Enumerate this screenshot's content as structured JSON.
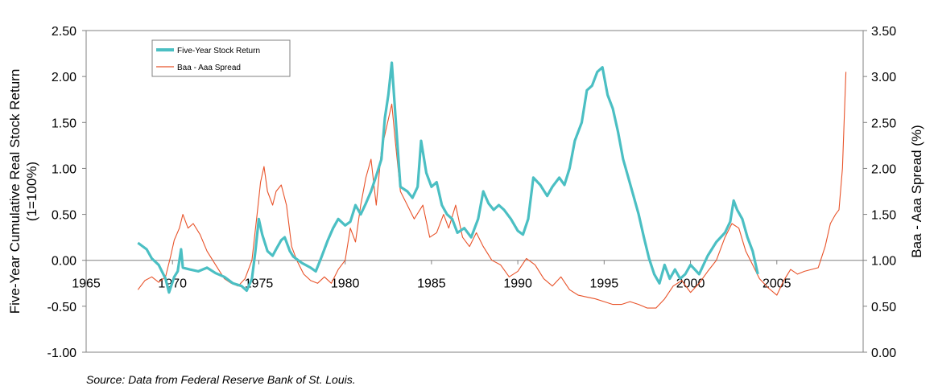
{
  "chart_data": {
    "type": "line",
    "xlim": [
      1965,
      2010
    ],
    "x_ticks": [
      1965,
      1970,
      1975,
      1980,
      1985,
      1990,
      1995,
      2000,
      2005
    ],
    "y_left": {
      "label": "Five-Year Cumulative Real Stock Return",
      "label_sub": "(1=100%)",
      "range": [
        -1.0,
        2.5
      ],
      "ticks": [
        "2.50",
        "2.00",
        "1.50",
        "1.00",
        "0.50",
        "0.00",
        "-0.50",
        "-1.00"
      ]
    },
    "y_right": {
      "label": "Baa - Aaa Spread (%)",
      "range": [
        0.0,
        3.5
      ],
      "ticks": [
        "3.50",
        "3.00",
        "2.50",
        "2.00",
        "1.50",
        "1.00",
        "0.50",
        "0.00"
      ]
    },
    "legend": {
      "placement": "top-left"
    },
    "series": [
      {
        "name": "Five-Year Stock Return",
        "axis": "left",
        "color": "#4bbfc3",
        "points": [
          [
            1968.0,
            0.19
          ],
          [
            1968.5,
            0.12
          ],
          [
            1968.8,
            0.02
          ],
          [
            1969.2,
            -0.05
          ],
          [
            1969.6,
            -0.2
          ],
          [
            1969.8,
            -0.35
          ],
          [
            1970.1,
            -0.18
          ],
          [
            1970.3,
            -0.12
          ],
          [
            1970.5,
            0.12
          ],
          [
            1970.6,
            -0.08
          ],
          [
            1971.0,
            -0.1
          ],
          [
            1971.5,
            -0.12
          ],
          [
            1972.0,
            -0.08
          ],
          [
            1972.5,
            -0.14
          ],
          [
            1973.0,
            -0.18
          ],
          [
            1973.5,
            -0.25
          ],
          [
            1974.0,
            -0.28
          ],
          [
            1974.3,
            -0.33
          ],
          [
            1974.6,
            -0.2
          ],
          [
            1974.8,
            0.1
          ],
          [
            1975.0,
            0.45
          ],
          [
            1975.2,
            0.28
          ],
          [
            1975.5,
            0.1
          ],
          [
            1975.8,
            0.05
          ],
          [
            1976.0,
            0.12
          ],
          [
            1976.3,
            0.22
          ],
          [
            1976.5,
            0.25
          ],
          [
            1976.8,
            0.1
          ],
          [
            1977.0,
            0.04
          ],
          [
            1977.5,
            -0.03
          ],
          [
            1978.0,
            -0.08
          ],
          [
            1978.3,
            -0.12
          ],
          [
            1978.6,
            0.02
          ],
          [
            1978.8,
            0.12
          ],
          [
            1979.0,
            0.22
          ],
          [
            1979.3,
            0.35
          ],
          [
            1979.6,
            0.45
          ],
          [
            1980.0,
            0.38
          ],
          [
            1980.3,
            0.42
          ],
          [
            1980.6,
            0.6
          ],
          [
            1980.9,
            0.5
          ],
          [
            1981.2,
            0.62
          ],
          [
            1981.5,
            0.75
          ],
          [
            1981.8,
            0.92
          ],
          [
            1982.1,
            1.1
          ],
          [
            1982.3,
            1.55
          ],
          [
            1982.5,
            1.8
          ],
          [
            1982.7,
            2.15
          ],
          [
            1982.9,
            1.6
          ],
          [
            1983.2,
            0.8
          ],
          [
            1983.6,
            0.75
          ],
          [
            1983.9,
            0.68
          ],
          [
            1984.2,
            0.8
          ],
          [
            1984.4,
            1.3
          ],
          [
            1984.7,
            0.95
          ],
          [
            1985.0,
            0.8
          ],
          [
            1985.3,
            0.85
          ],
          [
            1985.6,
            0.6
          ],
          [
            1985.9,
            0.5
          ],
          [
            1986.2,
            0.45
          ],
          [
            1986.5,
            0.3
          ],
          [
            1986.9,
            0.35
          ],
          [
            1987.3,
            0.25
          ],
          [
            1987.7,
            0.45
          ],
          [
            1988.0,
            0.75
          ],
          [
            1988.3,
            0.62
          ],
          [
            1988.6,
            0.55
          ],
          [
            1988.9,
            0.6
          ],
          [
            1989.2,
            0.55
          ],
          [
            1989.6,
            0.45
          ],
          [
            1990.0,
            0.32
          ],
          [
            1990.3,
            0.28
          ],
          [
            1990.6,
            0.45
          ],
          [
            1990.9,
            0.9
          ],
          [
            1991.3,
            0.82
          ],
          [
            1991.7,
            0.7
          ],
          [
            1992.0,
            0.8
          ],
          [
            1992.4,
            0.9
          ],
          [
            1992.7,
            0.82
          ],
          [
            1993.0,
            1.0
          ],
          [
            1993.3,
            1.3
          ],
          [
            1993.7,
            1.5
          ],
          [
            1994.0,
            1.85
          ],
          [
            1994.3,
            1.9
          ],
          [
            1994.6,
            2.05
          ],
          [
            1994.9,
            2.1
          ],
          [
            1995.2,
            1.8
          ],
          [
            1995.5,
            1.65
          ],
          [
            1995.8,
            1.4
          ],
          [
            1996.1,
            1.1
          ],
          [
            1996.4,
            0.9
          ],
          [
            1996.7,
            0.7
          ],
          [
            1997.0,
            0.5
          ],
          [
            1997.3,
            0.25
          ],
          [
            1997.6,
            0.02
          ],
          [
            1997.9,
            -0.15
          ],
          [
            1998.2,
            -0.25
          ],
          [
            1998.5,
            -0.05
          ],
          [
            1998.8,
            -0.2
          ],
          [
            1999.1,
            -0.1
          ],
          [
            1999.4,
            -0.2
          ],
          [
            1999.7,
            -0.15
          ],
          [
            2000.0,
            -0.05
          ],
          [
            2000.5,
            -0.15
          ],
          [
            2001.0,
            0.05
          ],
          [
            2001.5,
            0.2
          ],
          [
            2002.0,
            0.3
          ],
          [
            2002.3,
            0.42
          ],
          [
            2002.5,
            0.65
          ],
          [
            2002.7,
            0.55
          ],
          [
            2003.0,
            0.45
          ],
          [
            2003.3,
            0.25
          ],
          [
            2003.6,
            0.1
          ],
          [
            2003.9,
            -0.15
          ]
        ]
      },
      {
        "name": "Baa - Aaa Spread",
        "axis": "right",
        "color": "#e8532a",
        "points": [
          [
            1968.0,
            0.68
          ],
          [
            1968.4,
            0.78
          ],
          [
            1968.8,
            0.82
          ],
          [
            1969.2,
            0.76
          ],
          [
            1969.6,
            0.82
          ],
          [
            1969.9,
            1.05
          ],
          [
            1970.1,
            1.22
          ],
          [
            1970.4,
            1.35
          ],
          [
            1970.6,
            1.5
          ],
          [
            1970.9,
            1.35
          ],
          [
            1971.2,
            1.4
          ],
          [
            1971.6,
            1.28
          ],
          [
            1972.0,
            1.1
          ],
          [
            1972.5,
            0.95
          ],
          [
            1973.0,
            0.8
          ],
          [
            1973.4,
            0.75
          ],
          [
            1973.8,
            0.72
          ],
          [
            1974.2,
            0.8
          ],
          [
            1974.6,
            1.0
          ],
          [
            1974.9,
            1.5
          ],
          [
            1975.1,
            1.85
          ],
          [
            1975.3,
            2.02
          ],
          [
            1975.5,
            1.75
          ],
          [
            1975.8,
            1.6
          ],
          [
            1976.0,
            1.75
          ],
          [
            1976.3,
            1.82
          ],
          [
            1976.6,
            1.6
          ],
          [
            1976.9,
            1.15
          ],
          [
            1977.2,
            1.0
          ],
          [
            1977.6,
            0.85
          ],
          [
            1978.0,
            0.78
          ],
          [
            1978.4,
            0.75
          ],
          [
            1978.8,
            0.82
          ],
          [
            1979.2,
            0.75
          ],
          [
            1979.6,
            0.9
          ],
          [
            1980.0,
            1.0
          ],
          [
            1980.3,
            1.35
          ],
          [
            1980.6,
            1.2
          ],
          [
            1980.9,
            1.6
          ],
          [
            1981.2,
            1.9
          ],
          [
            1981.5,
            2.1
          ],
          [
            1981.8,
            1.6
          ],
          [
            1982.1,
            2.2
          ],
          [
            1982.4,
            2.45
          ],
          [
            1982.7,
            2.7
          ],
          [
            1982.9,
            2.3
          ],
          [
            1983.2,
            1.75
          ],
          [
            1983.6,
            1.6
          ],
          [
            1984.0,
            1.45
          ],
          [
            1984.5,
            1.6
          ],
          [
            1984.9,
            1.25
          ],
          [
            1985.3,
            1.3
          ],
          [
            1985.7,
            1.5
          ],
          [
            1986.0,
            1.35
          ],
          [
            1986.4,
            1.6
          ],
          [
            1986.8,
            1.25
          ],
          [
            1987.2,
            1.15
          ],
          [
            1987.6,
            1.3
          ],
          [
            1988.0,
            1.15
          ],
          [
            1988.5,
            1.0
          ],
          [
            1989.0,
            0.95
          ],
          [
            1989.5,
            0.82
          ],
          [
            1990.0,
            0.88
          ],
          [
            1990.5,
            1.02
          ],
          [
            1991.0,
            0.95
          ],
          [
            1991.5,
            0.8
          ],
          [
            1992.0,
            0.72
          ],
          [
            1992.5,
            0.82
          ],
          [
            1993.0,
            0.68
          ],
          [
            1993.5,
            0.62
          ],
          [
            1994.0,
            0.6
          ],
          [
            1994.5,
            0.58
          ],
          [
            1995.0,
            0.55
          ],
          [
            1995.5,
            0.52
          ],
          [
            1996.0,
            0.52
          ],
          [
            1996.5,
            0.55
          ],
          [
            1997.0,
            0.52
          ],
          [
            1997.5,
            0.48
          ],
          [
            1998.0,
            0.48
          ],
          [
            1998.5,
            0.58
          ],
          [
            1999.0,
            0.72
          ],
          [
            1999.5,
            0.78
          ],
          [
            2000.0,
            0.65
          ],
          [
            2000.5,
            0.75
          ],
          [
            2001.0,
            0.88
          ],
          [
            2001.5,
            1.0
          ],
          [
            2002.0,
            1.25
          ],
          [
            2002.4,
            1.4
          ],
          [
            2002.8,
            1.35
          ],
          [
            2003.2,
            1.1
          ],
          [
            2003.6,
            0.95
          ],
          [
            2004.0,
            0.8
          ],
          [
            2004.5,
            0.7
          ],
          [
            2005.0,
            0.62
          ],
          [
            2005.4,
            0.78
          ],
          [
            2005.8,
            0.9
          ],
          [
            2006.2,
            0.85
          ],
          [
            2006.6,
            0.88
          ],
          [
            2007.0,
            0.9
          ],
          [
            2007.4,
            0.92
          ],
          [
            2007.8,
            1.15
          ],
          [
            2008.1,
            1.4
          ],
          [
            2008.4,
            1.5
          ],
          [
            2008.6,
            1.55
          ],
          [
            2008.8,
            2.0
          ],
          [
            2009.0,
            3.05
          ]
        ]
      }
    ],
    "source": "Source: Data from Federal Reserve Bank of St. Louis."
  }
}
